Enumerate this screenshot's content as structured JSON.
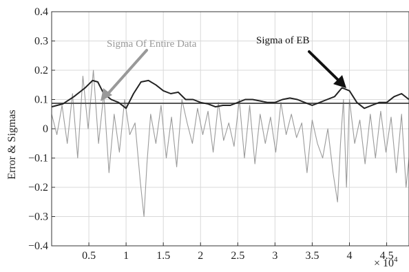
{
  "chart_data": {
    "type": "line",
    "ylabel": "Error & Sigmas",
    "xlabel": "",
    "x_multiplier": "× 10",
    "x_multiplier_exponent": "4",
    "xlim": [
      0,
      48000
    ],
    "ylim": [
      -0.4,
      0.4
    ],
    "grid": true,
    "x_ticks": [
      5000,
      10000,
      15000,
      20000,
      25000,
      30000,
      35000,
      40000,
      45000
    ],
    "x_tick_labels": [
      "0.5",
      "1",
      "1.5",
      "2",
      "2.5",
      "3",
      "3.5",
      "4",
      "4.5"
    ],
    "y_ticks": [
      -0.4,
      -0.3,
      -0.2,
      -0.1,
      0,
      0.1,
      0.2,
      0.3,
      0.4
    ],
    "y_tick_labels": [
      "−0.4",
      "−0.3",
      "−0.2",
      "−0.1",
      "0",
      "0.1",
      "0.2",
      "0.3",
      "0.4"
    ],
    "colors": {
      "error": "#9a9a9a",
      "sigma_eb": "#222222",
      "sigma_entire": "#555555",
      "arrow_entire": "#999999",
      "arrow_eb": "#111111"
    },
    "series": [
      {
        "key": "sigma_entire",
        "x": [
          0,
          48000
        ],
        "y": [
          0.087,
          0.087
        ]
      },
      {
        "key": "sigma_eb",
        "x": [
          0,
          1500,
          3000,
          4500,
          5500,
          6200,
          7000,
          8000,
          9000,
          10000,
          11000,
          12000,
          13000,
          14000,
          15000,
          16000,
          17000,
          18000,
          19000,
          20000,
          21000,
          22000,
          23000,
          24000,
          25000,
          26000,
          27000,
          28000,
          29000,
          30000,
          31000,
          32000,
          33000,
          34000,
          35000,
          36000,
          37000,
          38000,
          39000,
          40000,
          41000,
          42000,
          43000,
          44000,
          45000,
          46000,
          47000,
          48000
        ],
        "y": [
          0.075,
          0.085,
          0.11,
          0.14,
          0.165,
          0.16,
          0.12,
          0.1,
          0.09,
          0.07,
          0.12,
          0.16,
          0.165,
          0.15,
          0.13,
          0.12,
          0.125,
          0.1,
          0.1,
          0.09,
          0.085,
          0.075,
          0.08,
          0.08,
          0.09,
          0.1,
          0.1,
          0.095,
          0.09,
          0.09,
          0.1,
          0.105,
          0.1,
          0.09,
          0.08,
          0.09,
          0.1,
          0.11,
          0.14,
          0.13,
          0.09,
          0.07,
          0.08,
          0.09,
          0.09,
          0.11,
          0.12,
          0.1
        ]
      },
      {
        "key": "error",
        "x": [
          0,
          700,
          1400,
          2100,
          2800,
          3500,
          4200,
          4900,
          5600,
          6300,
          7000,
          7700,
          8400,
          9100,
          9800,
          10500,
          11200,
          11900,
          12400,
          12800,
          13300,
          14000,
          14700,
          15400,
          16100,
          16800,
          17500,
          18200,
          18900,
          19600,
          20300,
          21000,
          21700,
          22400,
          23100,
          23800,
          24500,
          25200,
          25900,
          26600,
          27300,
          28000,
          28700,
          29400,
          30100,
          30800,
          31500,
          32200,
          32900,
          33600,
          34300,
          35000,
          35700,
          36400,
          37100,
          37800,
          38400,
          38800,
          39200,
          39600,
          40000,
          40700,
          41400,
          42100,
          42800,
          43500,
          44200,
          44900,
          45600,
          46300,
          47000,
          47600,
          48000
        ],
        "y": [
          0.05,
          -0.02,
          0.08,
          -0.05,
          0.12,
          -0.1,
          0.18,
          0.0,
          0.2,
          -0.05,
          0.12,
          -0.15,
          0.05,
          -0.08,
          0.1,
          -0.02,
          0.02,
          -0.18,
          -0.3,
          -0.12,
          0.05,
          -0.05,
          0.08,
          -0.1,
          0.04,
          -0.13,
          0.1,
          0.02,
          -0.05,
          0.07,
          -0.02,
          0.06,
          -0.08,
          0.09,
          -0.04,
          0.02,
          -0.06,
          0.1,
          -0.1,
          0.08,
          -0.12,
          0.05,
          -0.05,
          0.04,
          -0.08,
          0.09,
          -0.02,
          0.05,
          -0.03,
          0.02,
          -0.15,
          0.03,
          -0.05,
          -0.1,
          0.0,
          -0.15,
          -0.25,
          -0.05,
          0.1,
          -0.2,
          0.1,
          -0.05,
          0.03,
          -0.12,
          0.05,
          -0.1,
          0.06,
          -0.08,
          0.04,
          -0.15,
          0.05,
          -0.2,
          -0.1
        ]
      }
    ],
    "annotations": [
      {
        "key": "sigma_entire",
        "text": "Sigma Of  Entire Data"
      },
      {
        "key": "sigma_eb",
        "text": "Sigma of  EB"
      }
    ]
  }
}
